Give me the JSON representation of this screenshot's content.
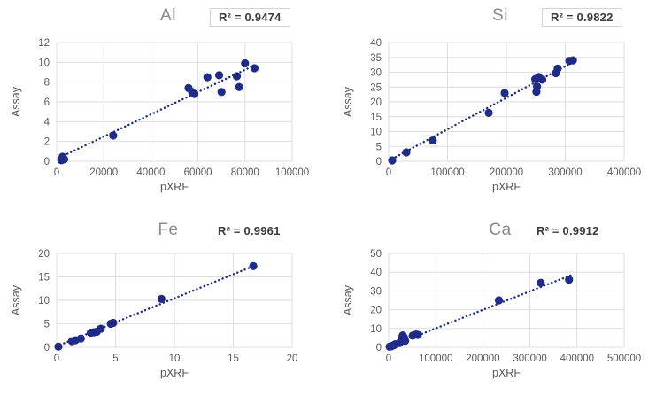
{
  "colors": {
    "marker": "#1e2b87",
    "trendline": "#1e2b87",
    "grid": "#dedede",
    "axis_text": "#595959",
    "title_text": "#8a8a8a",
    "r2_text": "#3b3b3b",
    "r2_box_border": "#d4d4d4",
    "background": "#ffffff"
  },
  "chart_data": [
    {
      "type": "scatter",
      "title": "Al",
      "r2_label": "R² = 0.9474",
      "xlabel": "pXRF",
      "ylabel": "Assay",
      "xlim": [
        0,
        100000
      ],
      "ylim": [
        0,
        12
      ],
      "xticks": [
        0,
        20000,
        40000,
        60000,
        80000,
        100000
      ],
      "yticks": [
        0,
        2,
        4,
        6,
        8,
        10,
        12
      ],
      "points": [
        [
          2000,
          0.1
        ],
        [
          2500,
          0.45
        ],
        [
          3200,
          0.2
        ],
        [
          24000,
          2.6
        ],
        [
          56000,
          7.4
        ],
        [
          57500,
          7.0
        ],
        [
          58500,
          6.8
        ],
        [
          64000,
          8.5
        ],
        [
          69000,
          8.7
        ],
        [
          70000,
          7.0
        ],
        [
          76500,
          8.6
        ],
        [
          77500,
          7.5
        ],
        [
          80000,
          9.9
        ],
        [
          84000,
          9.4
        ]
      ],
      "trendline": {
        "x1": 1500,
        "y1": 0.4,
        "x2": 84000,
        "y2": 9.7
      },
      "r2_boxed": true
    },
    {
      "type": "scatter",
      "title": "Si",
      "r2_label": "R² = 0.9822",
      "xlabel": "pXRF",
      "ylabel": "Assay",
      "xlim": [
        0,
        400000
      ],
      "ylim": [
        0,
        40
      ],
      "xticks": [
        0,
        100000,
        200000,
        300000,
        400000
      ],
      "yticks": [
        0,
        5,
        10,
        15,
        20,
        25,
        30,
        35,
        40
      ],
      "points": [
        [
          6000,
          0.3
        ],
        [
          30000,
          3.0
        ],
        [
          75000,
          7.0
        ],
        [
          170000,
          16.3
        ],
        [
          197000,
          23.0
        ],
        [
          249000,
          27.7
        ],
        [
          251000,
          23.4
        ],
        [
          252000,
          25.2
        ],
        [
          255000,
          28.4
        ],
        [
          261000,
          27.5
        ],
        [
          284000,
          29.7
        ],
        [
          287000,
          31.2
        ],
        [
          307000,
          33.8
        ],
        [
          313000,
          34.0
        ]
      ],
      "trendline": {
        "x1": 6000,
        "y1": 0.8,
        "x2": 313000,
        "y2": 33.4
      },
      "r2_boxed": true
    },
    {
      "type": "scatter",
      "title": "Fe",
      "r2_label": "R² = 0.9961",
      "xlabel": "pXRF",
      "ylabel": "Assay",
      "xlim": [
        0,
        20
      ],
      "ylim": [
        0,
        20
      ],
      "xticks": [
        0,
        5,
        10,
        15,
        20
      ],
      "yticks": [
        0,
        5,
        10,
        15,
        20
      ],
      "points": [
        [
          0.15,
          0.15
        ],
        [
          1.3,
          1.3
        ],
        [
          1.6,
          1.5
        ],
        [
          2.05,
          1.85
        ],
        [
          2.9,
          3.1
        ],
        [
          3.15,
          3.2
        ],
        [
          3.4,
          3.3
        ],
        [
          3.75,
          3.95
        ],
        [
          4.6,
          5.0
        ],
        [
          4.8,
          5.2
        ],
        [
          8.9,
          10.3
        ],
        [
          16.7,
          17.3
        ]
      ],
      "trendline": {
        "x1": 0,
        "y1": 0.2,
        "x2": 16.9,
        "y2": 17.5
      },
      "r2_boxed": false
    },
    {
      "type": "scatter",
      "title": "Ca",
      "r2_label": "R² = 0.9912",
      "xlabel": "pXRF",
      "ylabel": "Assay",
      "xlim": [
        0,
        500000
      ],
      "ylim": [
        0,
        50
      ],
      "xticks": [
        0,
        100000,
        200000,
        300000,
        400000,
        500000
      ],
      "yticks": [
        0,
        10,
        20,
        30,
        40,
        50
      ],
      "points": [
        [
          2000,
          0.3
        ],
        [
          5000,
          0.5
        ],
        [
          8000,
          0.8
        ],
        [
          11000,
          1.1
        ],
        [
          14000,
          1.6
        ],
        [
          23000,
          2.3
        ],
        [
          28000,
          4.7
        ],
        [
          30000,
          6.3
        ],
        [
          33000,
          5.0
        ],
        [
          35000,
          3.4
        ],
        [
          51000,
          6.2
        ],
        [
          58000,
          6.8
        ],
        [
          62000,
          6.6
        ],
        [
          234000,
          25.0
        ],
        [
          323000,
          34.3
        ],
        [
          383000,
          36.0
        ]
      ],
      "trendline": {
        "x1": 0,
        "y1": 0.2,
        "x2": 388000,
        "y2": 38.5
      },
      "r2_boxed": false
    }
  ]
}
